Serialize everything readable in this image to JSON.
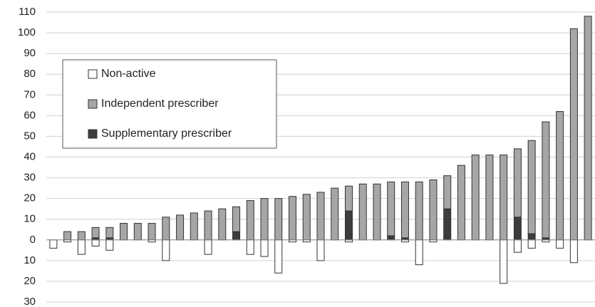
{
  "chart_data": {
    "type": "bar",
    "stacked": true,
    "categories": [
      null,
      null,
      null,
      null,
      null,
      null,
      null,
      null,
      null,
      null,
      null,
      null,
      null,
      null,
      null,
      null,
      null,
      null,
      null,
      null,
      null,
      null,
      null,
      null,
      null,
      null,
      null,
      null,
      null,
      null,
      null,
      null,
      null,
      null,
      null,
      null,
      null,
      null,
      null
    ],
    "series": [
      {
        "name": "Non-active",
        "color": "#ffffff",
        "values": [
          -4,
          -1,
          -7,
          -3,
          -5,
          0,
          0,
          -1,
          -10,
          0,
          0,
          -7,
          0,
          0,
          -7,
          -8,
          -16,
          -1,
          -1,
          -10,
          0,
          -1,
          0,
          0,
          0,
          -1,
          -12,
          -1,
          0,
          0,
          0,
          0,
          -21,
          -6,
          -4,
          -1,
          -4,
          -11,
          0
        ]
      },
      {
        "name": "Independent prescriber",
        "color": "#a6a6a6",
        "values": [
          0,
          4,
          4,
          5,
          5,
          8,
          8,
          8,
          11,
          12,
          13,
          14,
          15,
          12,
          19,
          20,
          20,
          21,
          22,
          23,
          25,
          12,
          27,
          27,
          26,
          27,
          28,
          29,
          16,
          36,
          41,
          41,
          41,
          33,
          45,
          56,
          62,
          102,
          108
        ]
      },
      {
        "name": "Supplementary prescriber",
        "color": "#3c3c3c",
        "values": [
          0,
          0,
          0,
          1,
          1,
          0,
          0,
          0,
          0,
          0,
          0,
          0,
          0,
          4,
          0,
          0,
          0,
          0,
          0,
          0,
          0,
          14,
          0,
          0,
          2,
          1,
          0,
          0,
          15,
          0,
          0,
          0,
          0,
          11,
          3,
          1,
          0,
          0,
          0
        ]
      }
    ],
    "ylim": [
      -30,
      110
    ],
    "yticks": [
      {
        "value": -30,
        "label": "30"
      },
      {
        "value": -20,
        "label": "20"
      },
      {
        "value": -10,
        "label": "10"
      },
      0,
      10,
      20,
      30,
      40,
      50,
      60,
      70,
      80,
      90,
      100,
      110
    ],
    "grid": true,
    "legend": "upper left"
  }
}
